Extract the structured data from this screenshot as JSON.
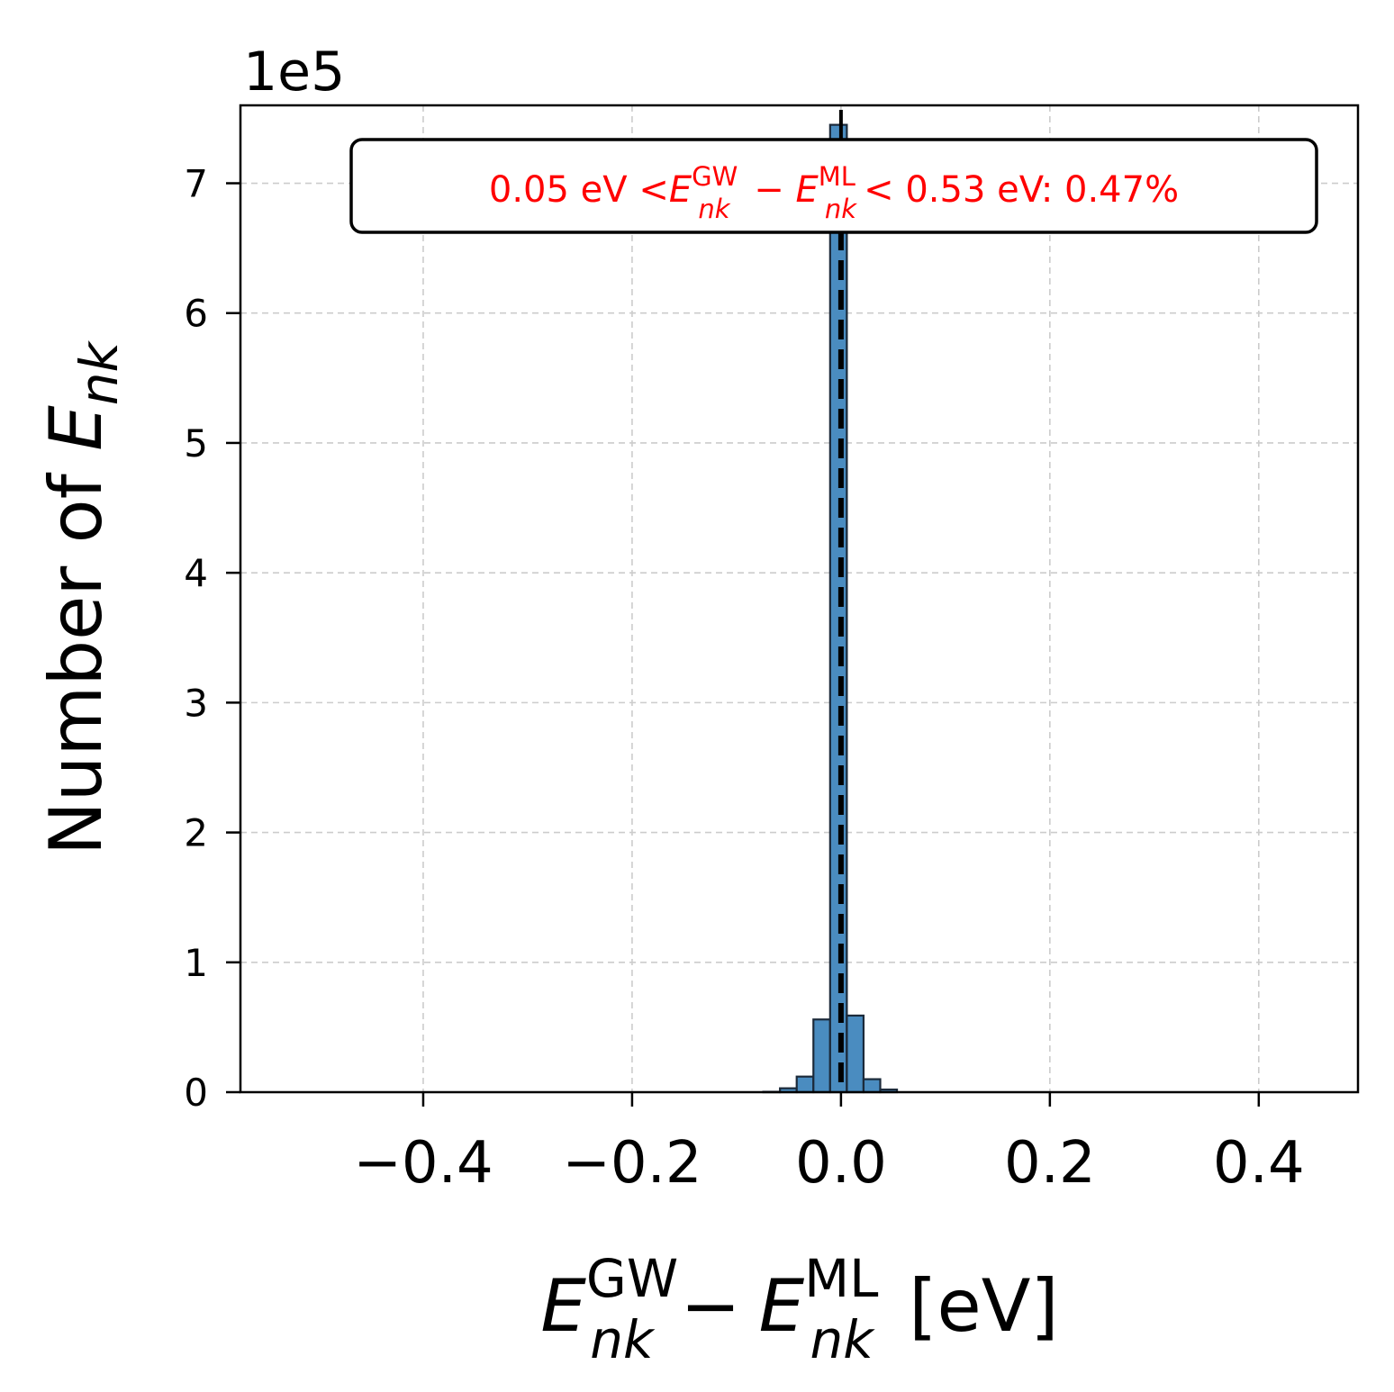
{
  "chart_data": {
    "type": "bar",
    "subtype": "histogram",
    "xlabel": {
      "base1": "E",
      "sub1": "nk",
      "sup1": "GW",
      "minus": "−",
      "base2": "E",
      "sub2": "nk",
      "sup2": "ML",
      "unit": " [eV]"
    },
    "ylabel": {
      "prefix": "Number of ",
      "base": "E",
      "sub": "nk"
    },
    "y_offset_label": "1e5",
    "xlim": [
      -0.575,
      0.495
    ],
    "ylim": [
      0,
      7.6
    ],
    "y_scale_factor": 100000,
    "grid": true,
    "x_ticks": [
      {
        "value": -0.4,
        "label": "−0.4"
      },
      {
        "value": -0.2,
        "label": "−0.2"
      },
      {
        "value": 0.0,
        "label": "0.0"
      },
      {
        "value": 0.2,
        "label": "0.2"
      },
      {
        "value": 0.4,
        "label": "0.4"
      }
    ],
    "y_ticks": [
      {
        "value": 0,
        "label": "0"
      },
      {
        "value": 1,
        "label": "1"
      },
      {
        "value": 2,
        "label": "2"
      },
      {
        "value": 3,
        "label": "3"
      },
      {
        "value": 4,
        "label": "4"
      },
      {
        "value": 5,
        "label": "5"
      },
      {
        "value": 6,
        "label": "6"
      },
      {
        "value": 7,
        "label": "7"
      }
    ],
    "bins": [
      {
        "x0": -0.0744,
        "x1": -0.0584,
        "value": 0.003
      },
      {
        "x0": -0.0584,
        "x1": -0.0424,
        "value": 0.03
      },
      {
        "x0": -0.0424,
        "x1": -0.0264,
        "value": 0.12
      },
      {
        "x0": -0.0264,
        "x1": -0.0104,
        "value": 0.56
      },
      {
        "x0": -0.0104,
        "x1": 0.0056,
        "value": 7.45
      },
      {
        "x0": 0.0056,
        "x1": 0.0216,
        "value": 0.59
      },
      {
        "x0": 0.0216,
        "x1": 0.0376,
        "value": 0.1
      },
      {
        "x0": 0.0376,
        "x1": 0.0536,
        "value": 0.02
      }
    ],
    "bar_color": "#4a8cc0",
    "bar_edge_color": "#1c2a3a",
    "reference_line": {
      "x": 0.0,
      "style": "dashed",
      "color": "#000000"
    },
    "annotation": {
      "color": "#ff0000",
      "prefix": "0.05 eV <",
      "base1": "E",
      "sub1": "nk",
      "sup1": "GW",
      "minus": " − ",
      "base2": "E",
      "sub2": "nk",
      "sup2": "ML",
      "suffix": "< 0.53 eV: 0.47%"
    }
  }
}
